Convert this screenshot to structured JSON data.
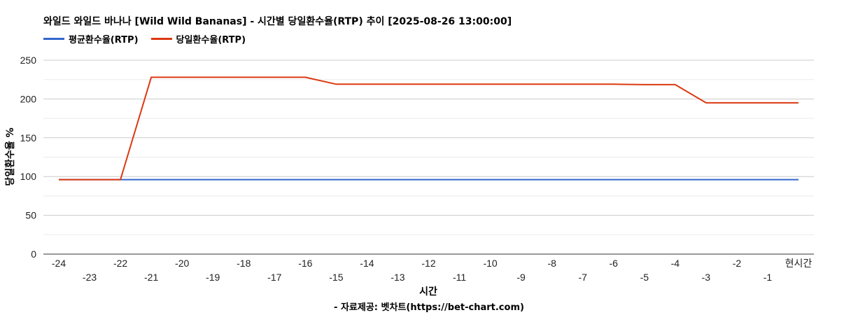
{
  "title": "와일드 와일드 바나나 [Wild Wild Bananas] - 시간별 당일환수율(RTP) 추이 [2025-08-26 13:00:00]",
  "source_note": "- 자료제공: 벳차트(https://bet-chart.com)",
  "chart_data": {
    "type": "line",
    "xlabel": "시간",
    "ylabel": "당일환수율 %",
    "ylim": [
      0,
      250
    ],
    "yticks": [
      0,
      50,
      100,
      150,
      200,
      250
    ],
    "categories": [
      "-24",
      "-23",
      "-22",
      "-21",
      "-20",
      "-19",
      "-18",
      "-17",
      "-16",
      "-15",
      "-14",
      "-13",
      "-12",
      "-11",
      "-10",
      "-9",
      "-8",
      "-7",
      "-6",
      "-5",
      "-4",
      "-3",
      "-2",
      "-1",
      "현시간"
    ],
    "grid": true,
    "legend_position": "top-left",
    "series": [
      {
        "name": "평균환수율(RTP)",
        "color": "#3366cc",
        "values": [
          96,
          96,
          96,
          96,
          96,
          96,
          96,
          96,
          96,
          96,
          96,
          96,
          96,
          96,
          96,
          96,
          96,
          96,
          96,
          96,
          96,
          96,
          96,
          96,
          96
        ]
      },
      {
        "name": "당일환수율(RTP)",
        "color": "#dc3912",
        "values": [
          96,
          96,
          96,
          228,
          228,
          228,
          228,
          228,
          228,
          219,
          219,
          219,
          219,
          219,
          219,
          219,
          219,
          219,
          219,
          218.5,
          218.5,
          195,
          195,
          195,
          195
        ]
      }
    ]
  }
}
